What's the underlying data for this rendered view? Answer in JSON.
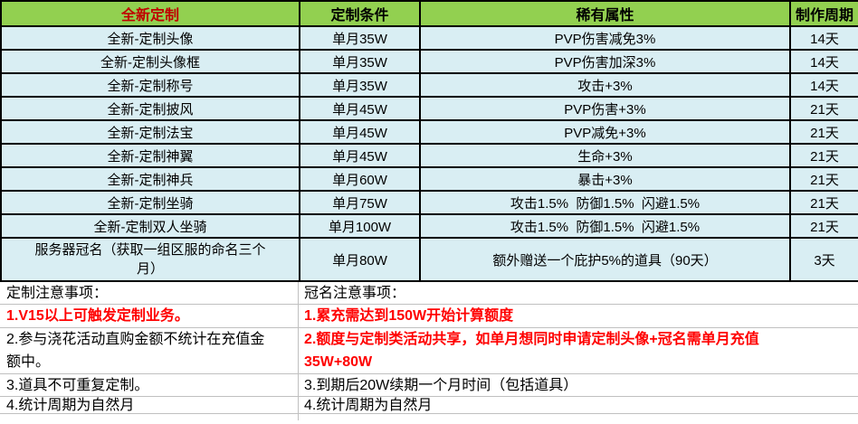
{
  "colors": {
    "header_bg": "#92D050",
    "row_bg": "#D9EEF3",
    "header_item_text": "#C00000",
    "note_emphasis": "#FF0000",
    "table_border": "#000000",
    "gridline": "#C0C0C0"
  },
  "table": {
    "headers": [
      {
        "label": "全新定制"
      },
      {
        "label": "定制条件"
      },
      {
        "label": "稀有属性"
      },
      {
        "label": "制作周期"
      }
    ],
    "rows": [
      {
        "item": "全新-定制头像",
        "condition": "单月35W",
        "attribute": "PVP伤害减免3%",
        "period": "14天"
      },
      {
        "item": "全新-定制头像框",
        "condition": "单月35W",
        "attribute": "PVP伤害加深3%",
        "period": "14天"
      },
      {
        "item": "全新-定制称号",
        "condition": "单月35W",
        "attribute": "攻击+3%",
        "period": "14天"
      },
      {
        "item": "全新-定制披风",
        "condition": "单月45W",
        "attribute": "PVP伤害+3%",
        "period": "21天"
      },
      {
        "item": "全新-定制法宝",
        "condition": "单月45W",
        "attribute": "PVP减免+3%",
        "period": "21天"
      },
      {
        "item": "全新-定制神翼",
        "condition": "单月45W",
        "attribute": "生命+3%",
        "period": "21天"
      },
      {
        "item": "全新-定制神兵",
        "condition": "单月60W",
        "attribute": "暴击+3%",
        "period": "21天"
      },
      {
        "item": "全新-定制坐骑",
        "condition": "单月75W",
        "attribute": "攻击1.5%  防御1.5%  闪避1.5%",
        "period": "21天"
      },
      {
        "item": "全新-定制双人坐骑",
        "condition": "单月100W",
        "attribute": "攻击1.5%  防御1.5%  闪避1.5%",
        "period": "21天"
      },
      {
        "item": "服务器冠名（获取一组区服的命名三个\n月）",
        "condition": "单月80W",
        "attribute": "额外赠送一个庇护5%的道具（90天）",
        "period": "3天"
      }
    ]
  },
  "notes": {
    "left": {
      "title": "定制注意事项：",
      "items": [
        {
          "text": "1.V15以上可触发定制业务。",
          "emphasis": true
        },
        {
          "text": "2.参与浇花活动直购金额不统计在充值金\n额中。",
          "emphasis": false
        },
        {
          "text": "3.道具不可重复定制。",
          "emphasis": false
        },
        {
          "text": "4.统计周期为自然月",
          "emphasis": false
        }
      ]
    },
    "right": {
      "title": "冠名注意事项：",
      "items": [
        {
          "text": "1.累充需达到150W开始计算额度",
          "emphasis": true
        },
        {
          "text": "2.额度与定制类活动共享，如单月想同时申请定制头像+冠名需单月充值\n35W+80W",
          "emphasis": true
        },
        {
          "text": "3.到期后20W续期一个月时间（包括道具）",
          "emphasis": false
        },
        {
          "text": "4.统计周期为自然月",
          "emphasis": false
        }
      ]
    }
  }
}
